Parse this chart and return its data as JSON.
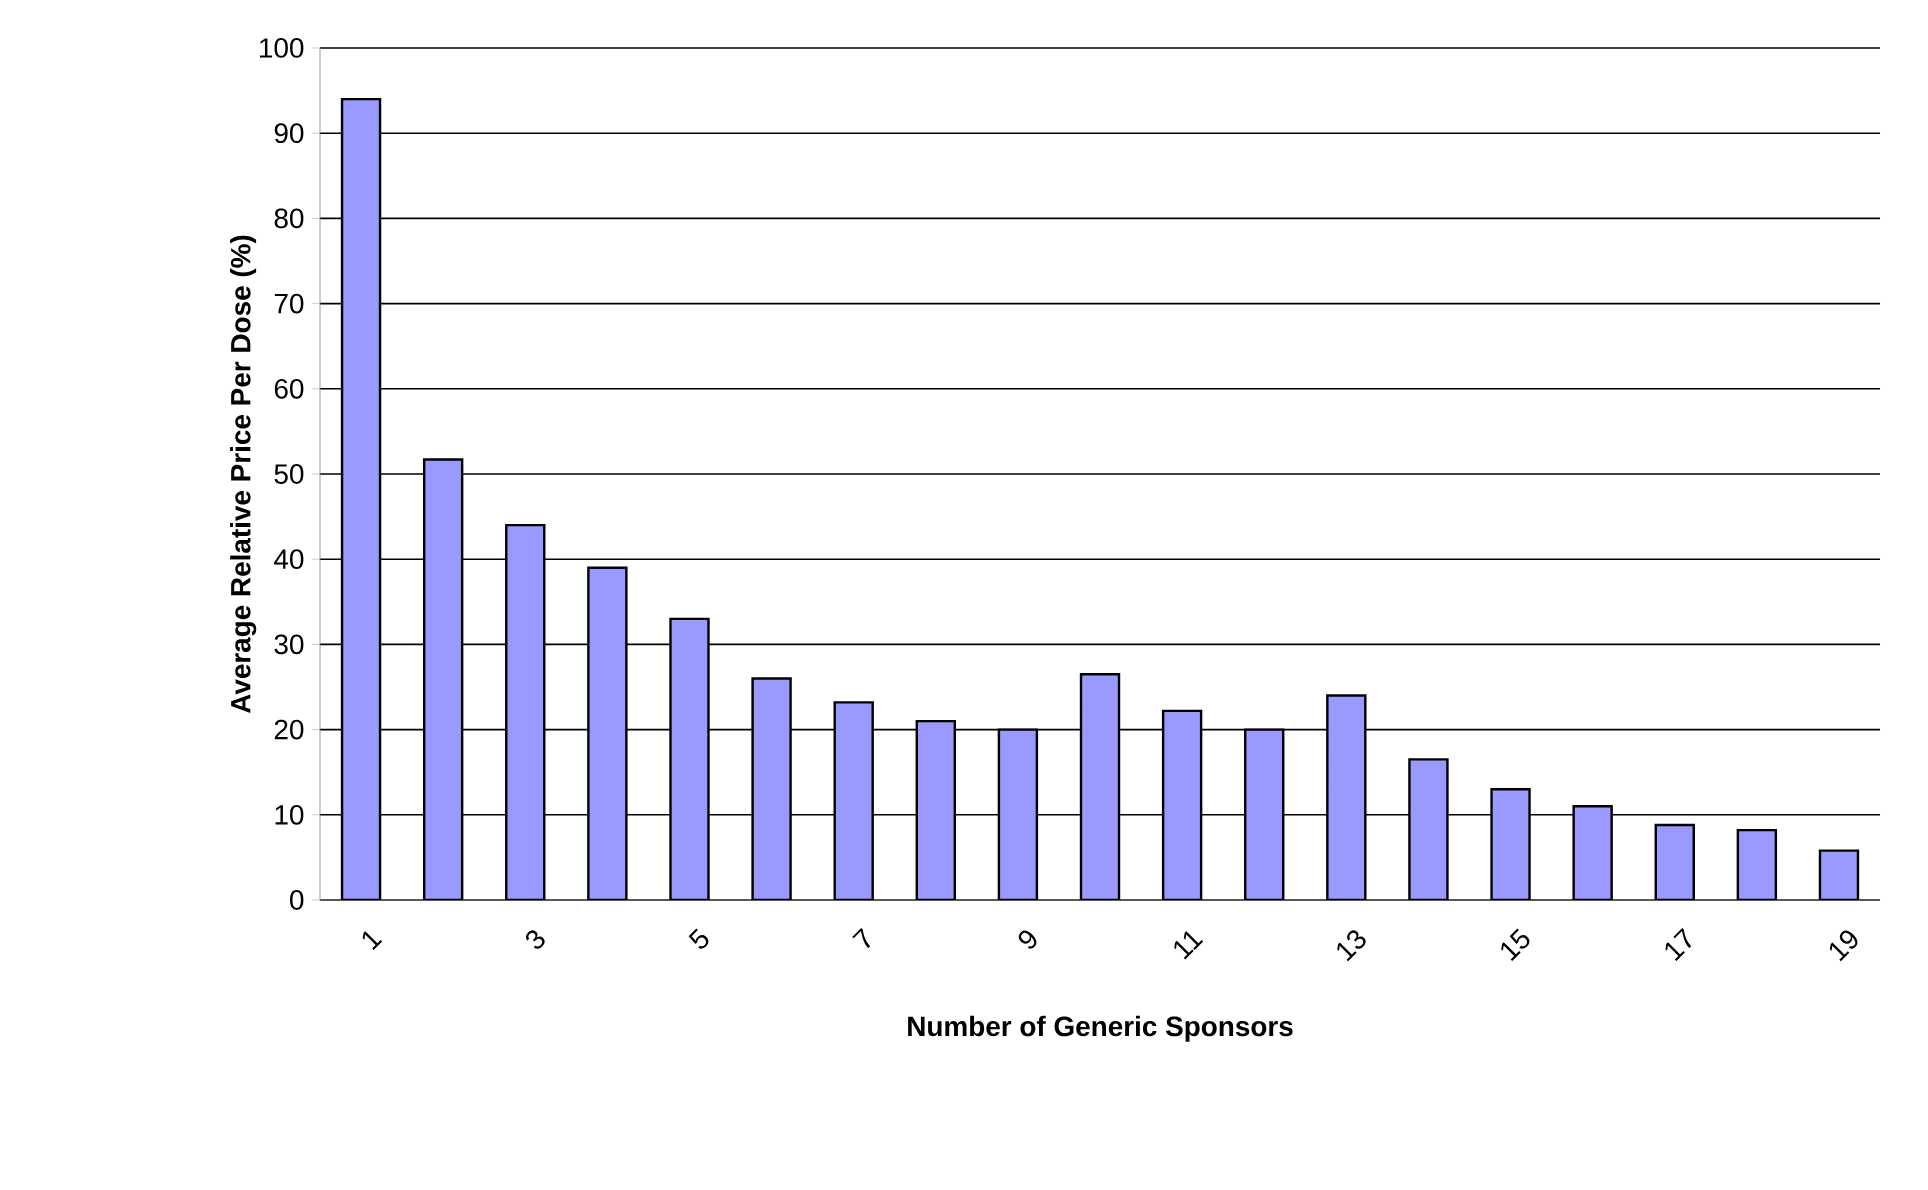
{
  "chart_data": {
    "type": "bar",
    "xlabel": "Number of Generic Sponsors",
    "ylabel": "Average Relative Price Per Dose (%)",
    "categories": [
      "1",
      null,
      "3",
      null,
      "5",
      null,
      "7",
      null,
      "9",
      null,
      "11",
      null,
      "13",
      null,
      "15",
      null,
      "17",
      null,
      "19"
    ],
    "values": [
      94,
      51.7,
      44,
      39,
      33,
      26,
      23.2,
      21,
      20,
      26.5,
      22.2,
      20,
      24,
      16.5,
      13,
      11,
      8.8,
      8.2,
      5.8
    ],
    "color": "#9999ff",
    "ylim": [
      0,
      100
    ],
    "yticks": [
      0,
      10,
      20,
      30,
      40,
      50,
      60,
      70,
      80,
      90,
      100
    ],
    "grid": "y"
  }
}
